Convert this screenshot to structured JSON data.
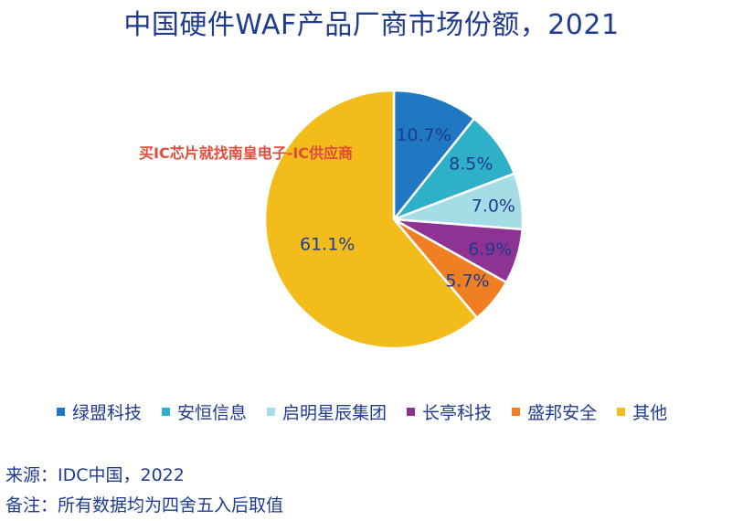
{
  "chart_data": {
    "type": "pie",
    "title": "中国硬件WAF产品厂商市场份额，2021",
    "categories": [
      "绿盟科技",
      "安恒信息",
      "启明星辰集团",
      "长亭科技",
      "盛邦安全",
      "其他"
    ],
    "values": [
      10.7,
      8.5,
      7.0,
      6.9,
      5.7,
      61.1
    ],
    "value_labels": [
      "10.7%",
      "8.5%",
      "7.0%",
      "6.9%",
      "5.7%",
      "61.1%"
    ],
    "colors": [
      "#1f78c1",
      "#2fb0c9",
      "#a5dde6",
      "#8e3394",
      "#ef7f22",
      "#f2bd1b"
    ],
    "label_color": "#1f3b8f",
    "legend_position": "bottom",
    "start_angle": "12 o'clock",
    "direction": "clockwise"
  },
  "watermark": "买IC芯片就找南皇电子-IC供应商",
  "source": "来源：IDC中国，2022",
  "note": "备注：所有数据均为四舍五入后取值"
}
